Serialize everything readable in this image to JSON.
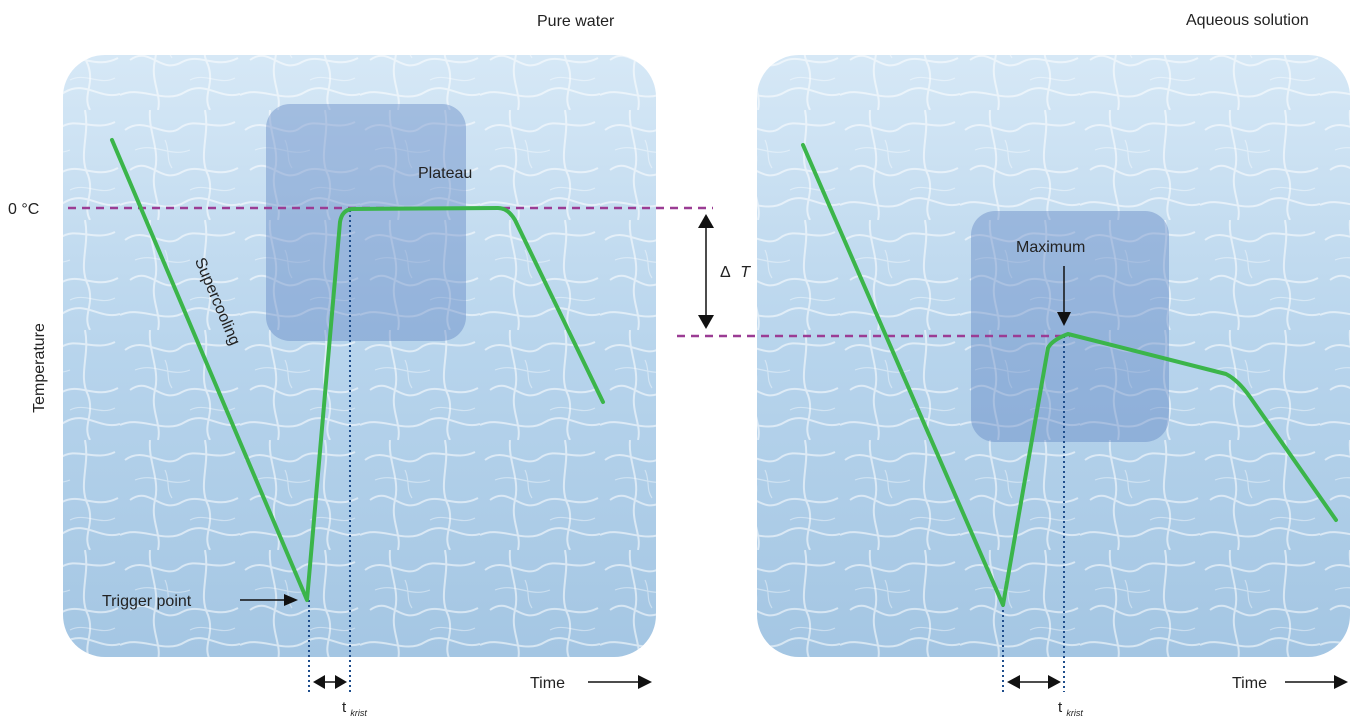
{
  "panels": [
    {
      "title": "Pure water",
      "x_axis_label": "Time",
      "t_label": "t",
      "t_sub": "krist"
    },
    {
      "title": "Aqueous solution",
      "x_axis_label": "Time",
      "t_label": "t",
      "t_sub": "krist"
    }
  ],
  "y_axis_label": "Temperature",
  "zero_label": "0 °C",
  "delta_t_symbol": "Δ",
  "delta_t_var": "T",
  "annotations": {
    "plateau": "Plateau",
    "supercooling": "Supercooling",
    "trigger_point": "Trigger point",
    "maximum": "Maximum"
  },
  "colors": {
    "curve": "#3bb54a",
    "reference": "#9b3c94",
    "dotted": "#1f4e8c",
    "arrow": "#111111",
    "water_base": "#a9cbe6",
    "water_caustic": "#ffffff",
    "highlight": "#5a7fc0"
  }
}
